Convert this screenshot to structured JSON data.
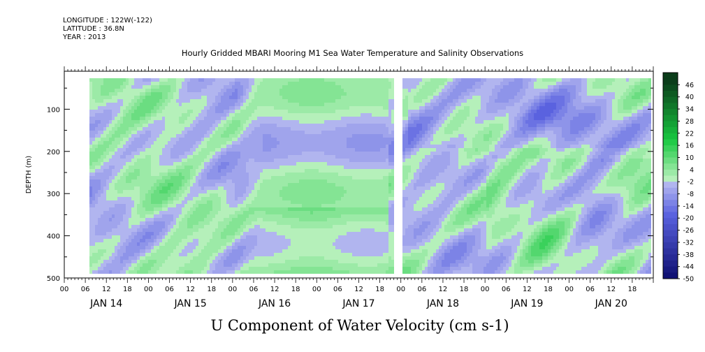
{
  "header": {
    "longitude": "LONGITUDE : 122W(-122)",
    "latitude": "LATITUDE : 36.8N",
    "year": "YEAR : 2013"
  },
  "chart_data": {
    "type": "heatmap",
    "title": "Hourly Gridded MBARI Mooring M1 Sea Water Temperature and Salinity Observations",
    "bottom_title": "U Component of Water Velocity (cm s-1)",
    "ylabel": "DEPTH (m)",
    "y_ticks": [
      100,
      200,
      300,
      400,
      500
    ],
    "ylim": [
      500,
      10
    ],
    "y_reversed": true,
    "x_hour_ticks": [
      "00",
      "06",
      "12",
      "18",
      "00",
      "06",
      "12",
      "18",
      "00",
      "06",
      "12",
      "18",
      "00",
      "06",
      "12",
      "18",
      "00",
      "06",
      "12",
      "18",
      "00",
      "06",
      "12",
      "18",
      "00",
      "06",
      "12",
      "18"
    ],
    "x_day_labels": [
      "JAN 14",
      "JAN 15",
      "JAN 16",
      "JAN 17",
      "JAN 18",
      "JAN 19",
      "JAN 20"
    ],
    "colorbar": {
      "labels": [
        "46",
        "40",
        "34",
        "28",
        "22",
        "16",
        "10",
        "4",
        "-2",
        "-8",
        "-14",
        "-20",
        "-26",
        "-32",
        "-38",
        "-44",
        "-50"
      ],
      "range": [
        -50,
        52
      ],
      "step": 3
    },
    "data_gaps": [
      "JAN 17 ~22:00-23:00 (all depths)"
    ],
    "notes": "Velocity field roughly -15 to +15 cm/s; blue = westward, green = eastward. Strong near-uniform band structure on JAN 16-17."
  },
  "colors": {
    "positive_max": "#0b3d1a",
    "positive_mid": "#18c840",
    "positive_low": "#b5f0ba",
    "negative_low": "#c3c6f2",
    "negative_mid": "#5a62e0",
    "negative_max": "#0a0a6a"
  }
}
